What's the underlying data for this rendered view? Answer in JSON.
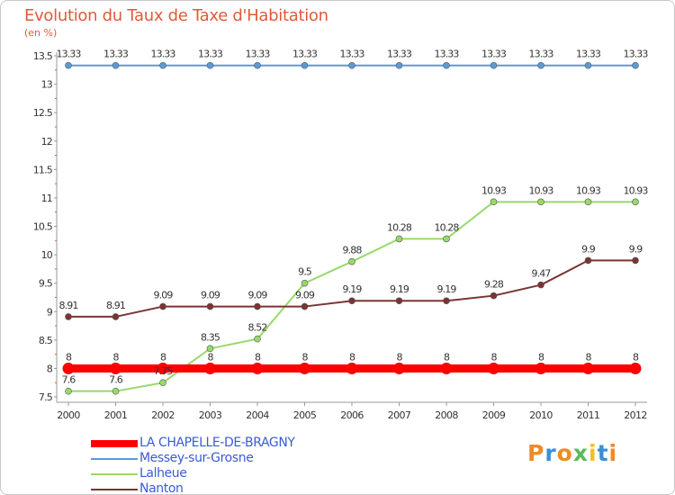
{
  "chart_data": {
    "type": "line",
    "title": "Evolution du Taux de Taxe d'Habitation",
    "unit_label": "(en %)",
    "x": [
      "2000",
      "2001",
      "2002",
      "2003",
      "2004",
      "2005",
      "2006",
      "2007",
      "2008",
      "2009",
      "2010",
      "2011",
      "2012"
    ],
    "y_ticks": [
      "7.5",
      "8",
      "8.5",
      "9",
      "9.5",
      "10",
      "10.5",
      "11",
      "11.5",
      "12",
      "12.5",
      "13",
      "13.5"
    ],
    "ylim": [
      7.5,
      13.5
    ],
    "grid": false,
    "legend_position": "bottom-left",
    "series": [
      {
        "name": "LA CHAPELLE-DE-BRAGNY",
        "color": "#ff0000",
        "values": [
          8,
          8,
          8,
          8,
          8,
          8,
          8,
          8,
          8,
          8,
          8,
          8,
          8
        ],
        "labels": [
          "8",
          "8",
          "8",
          "8",
          "8",
          "8",
          "8",
          "8",
          "8",
          "8",
          "8",
          "8",
          "8"
        ]
      },
      {
        "name": "Messey-sur-Grosne",
        "color": "#5b9bd5",
        "values": [
          13.33,
          13.33,
          13.33,
          13.33,
          13.33,
          13.33,
          13.33,
          13.33,
          13.33,
          13.33,
          13.33,
          13.33,
          13.33
        ],
        "labels": [
          "13.33",
          "13.33",
          "13.33",
          "13.33",
          "13.33",
          "13.33",
          "13.33",
          "13.33",
          "13.33",
          "13.33",
          "13.33",
          "13.33",
          "13.33"
        ]
      },
      {
        "name": "Lalheue",
        "color": "#99d96b",
        "values": [
          7.6,
          7.6,
          7.75,
          8.35,
          8.52,
          9.5,
          9.88,
          10.28,
          10.28,
          10.93,
          10.93,
          10.93,
          10.93
        ],
        "labels": [
          "7.6",
          "7.6",
          "7.75",
          "8.35",
          "8.52",
          "9.5",
          "9.88",
          "10.28",
          "10.28",
          "10.93",
          "10.93",
          "10.93",
          "10.93"
        ]
      },
      {
        "name": "Nanton",
        "color": "#7a3434",
        "values": [
          8.91,
          8.91,
          9.09,
          9.09,
          9.09,
          9.09,
          9.19,
          9.19,
          9.19,
          9.28,
          9.47,
          9.9,
          9.9
        ],
        "labels": [
          "8.91",
          "8.91",
          "9.09",
          "9.09",
          "9.09",
          "9.09",
          "9.19",
          "9.19",
          "9.19",
          "9.28",
          "9.47",
          "9.9",
          "9.9"
        ]
      }
    ]
  },
  "logo": {
    "text": "Proxiti",
    "colors": [
      "#f08a24",
      "#3a8fd8",
      "#f08a24",
      "#5cb85c",
      "#f0c020",
      "#3a8fd8",
      "#f08a24"
    ]
  }
}
